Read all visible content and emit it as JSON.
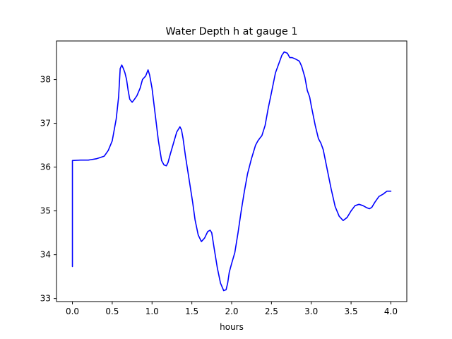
{
  "chart_data": {
    "type": "line",
    "title": "Water Depth h at gauge 1",
    "xlabel": "hours",
    "ylabel": "",
    "xlim": [
      -0.2,
      4.2
    ],
    "ylim": [
      32.93,
      38.88
    ],
    "xticks": [
      0.0,
      0.5,
      1.0,
      1.5,
      2.0,
      2.5,
      3.0,
      3.5,
      4.0
    ],
    "xtick_labels": [
      "0.0",
      "0.5",
      "1.0",
      "1.5",
      "2.0",
      "2.5",
      "3.0",
      "3.5",
      "4.0"
    ],
    "yticks": [
      33,
      34,
      35,
      36,
      37,
      38
    ],
    "ytick_labels": [
      "33",
      "34",
      "35",
      "36",
      "37",
      "38"
    ],
    "grid": false,
    "line_color": "#0000ff",
    "series": [
      {
        "x": [
          0.0,
          0.0,
          0.1,
          0.2,
          0.3,
          0.4,
          0.45,
          0.5,
          0.55,
          0.58,
          0.6,
          0.62,
          0.64,
          0.66,
          0.68,
          0.7,
          0.72,
          0.75,
          0.78,
          0.81,
          0.85,
          0.88,
          0.92,
          0.95,
          0.97,
          1.0,
          1.04,
          1.08,
          1.12,
          1.15,
          1.18,
          1.2,
          1.23,
          1.27,
          1.31,
          1.35,
          1.37,
          1.39,
          1.42,
          1.45,
          1.48,
          1.51,
          1.54,
          1.58,
          1.62,
          1.66,
          1.7,
          1.73,
          1.75,
          1.78,
          1.82,
          1.86,
          1.9,
          1.93,
          1.95,
          1.97,
          2.0,
          2.04,
          2.08,
          2.12,
          2.16,
          2.2,
          2.25,
          2.3,
          2.33,
          2.35,
          2.38,
          2.42,
          2.46,
          2.5,
          2.55,
          2.6,
          2.63,
          2.66,
          2.7,
          2.73,
          2.76,
          2.8,
          2.85,
          2.88,
          2.92,
          2.95,
          2.98,
          3.0,
          3.05,
          3.09,
          3.12,
          3.15,
          3.2,
          3.25,
          3.3,
          3.35,
          3.4,
          3.45,
          3.5,
          3.55,
          3.6,
          3.65,
          3.7,
          3.73,
          3.76,
          3.8,
          3.85,
          3.9,
          3.95,
          4.0
        ],
        "y": [
          33.73,
          36.15,
          36.16,
          36.16,
          36.19,
          36.25,
          36.38,
          36.6,
          37.1,
          37.6,
          38.25,
          38.33,
          38.25,
          38.15,
          38.0,
          37.75,
          37.55,
          37.48,
          37.55,
          37.63,
          37.8,
          38.0,
          38.08,
          38.22,
          38.1,
          37.8,
          37.2,
          36.6,
          36.15,
          36.05,
          36.03,
          36.1,
          36.3,
          36.55,
          36.8,
          36.92,
          36.85,
          36.65,
          36.25,
          35.9,
          35.55,
          35.2,
          34.8,
          34.45,
          34.3,
          34.38,
          34.53,
          34.56,
          34.5,
          34.15,
          33.7,
          33.35,
          33.18,
          33.2,
          33.35,
          33.6,
          33.8,
          34.05,
          34.5,
          35.0,
          35.45,
          35.85,
          36.2,
          36.5,
          36.6,
          36.65,
          36.72,
          36.95,
          37.35,
          37.7,
          38.15,
          38.4,
          38.55,
          38.63,
          38.6,
          38.5,
          38.5,
          38.47,
          38.42,
          38.3,
          38.05,
          37.75,
          37.6,
          37.4,
          36.95,
          36.65,
          36.55,
          36.4,
          35.95,
          35.5,
          35.1,
          34.88,
          34.78,
          34.85,
          35.0,
          35.12,
          35.15,
          35.12,
          35.07,
          35.05,
          35.08,
          35.2,
          35.33,
          35.38,
          35.45,
          35.45
        ]
      }
    ]
  }
}
